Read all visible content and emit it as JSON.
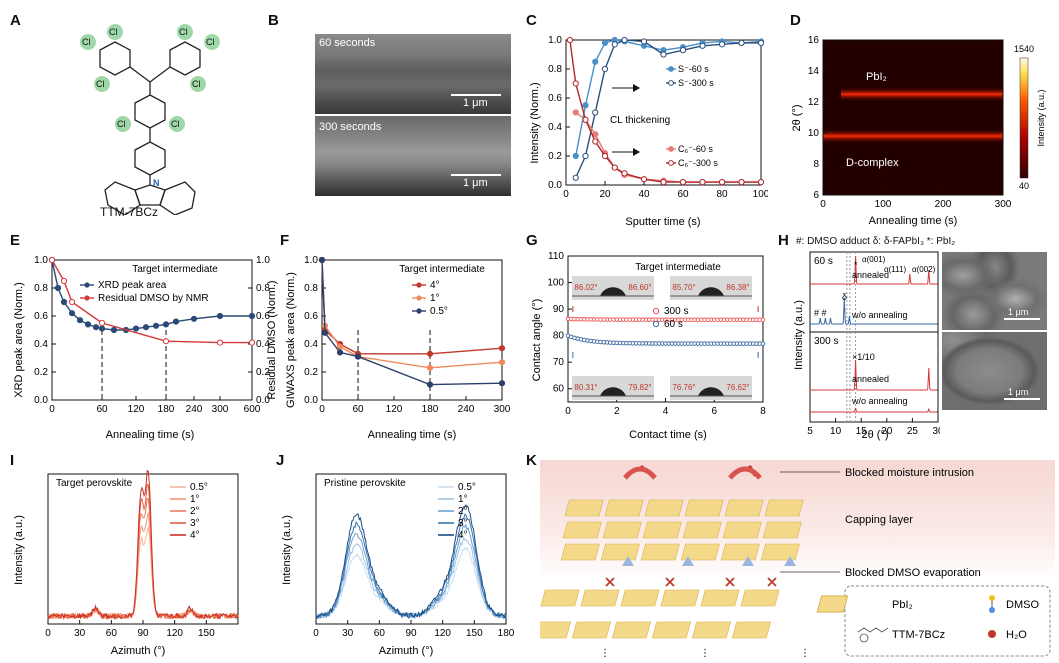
{
  "panels": {
    "A": {
      "label": "A",
      "molecule_name": "TTM-7BCz",
      "atoms": {
        "cl": "Cl",
        "n": "N"
      }
    },
    "B": {
      "label": "B",
      "top": "60 seconds",
      "bottom": "300 seconds",
      "scale": "1 μm"
    },
    "C": {
      "label": "C",
      "xlabel": "Sputter time (s)",
      "ylabel": "Intensity (Norm.)",
      "annotation": "CL thickening",
      "legend": [
        "S⁻-60 s",
        "S⁻-300 s",
        "C₆⁻-60 s",
        "C₆⁻-300 s"
      ]
    },
    "D": {
      "label": "D",
      "xlabel": "Annealing time (s)",
      "ylabel": "2θ (°)",
      "band_top": "PbI₂",
      "band_bottom": "D-complex",
      "cbar_max": "1540",
      "cbar_min": "40",
      "cbar_label": "Intensity (a.u.)"
    },
    "E": {
      "label": "E",
      "xlabel": "Annealing time (s)",
      "ylabel_left": "XRD peak area (Norm.)",
      "ylabel_right": "Residual DMSO (Norm.)",
      "title": "Target intermediate",
      "legend": [
        "XRD peak area",
        "Residual DMSO by NMR"
      ]
    },
    "F": {
      "label": "F",
      "xlabel": "Annealing time (s)",
      "ylabel": "GIWAXS peak area (Norm.)",
      "title": "Target intermediate",
      "legend": [
        "4°",
        "1°",
        "0.5°"
      ]
    },
    "G": {
      "label": "G",
      "xlabel": "Contact time (s)",
      "ylabel": "Contact angle (°)",
      "title": "Target intermediate",
      "legend": [
        "300 s",
        "60 s"
      ],
      "angles": [
        "86.02°",
        "86.60°",
        "85.70°",
        "86.38°",
        "80.31°",
        "79.82°",
        "76.76°",
        "76.62°"
      ]
    },
    "H": {
      "label": "H",
      "header": "#: DMSO adduct  δ: δ-FAPbI₃ *: PbI₂",
      "xlabel": "2θ (°)",
      "ylabel": "Intensity (a.u.)",
      "t60": "60 s",
      "t300": "300 s",
      "annealed": "annealed",
      "wo": "w/o annealing",
      "x10": "×1/10",
      "alpha001": "α(001)",
      "alpha111": "α(111)",
      "alpha002": "α(002)",
      "hash": "#",
      "hashes": "# #",
      "delta": "δ",
      "star": "*",
      "scale": "1 μm"
    },
    "I": {
      "label": "I",
      "xlabel": "Azimuth (°)",
      "ylabel": "Intensity (a.u.)",
      "title": "Target perovskite",
      "legend": [
        "0.5°",
        "1°",
        "2°",
        "3°",
        "4°"
      ]
    },
    "J": {
      "label": "J",
      "xlabel": "Azimuth (°)",
      "ylabel": "Intensity (a.u.)",
      "title": "Pristine perovskite",
      "legend": [
        "0.5°",
        "1°",
        "2°",
        "3°",
        "4°"
      ]
    },
    "K": {
      "label": "K",
      "callouts": [
        "Blocked moisture intrusion",
        "Capping layer",
        "Blocked DMSO evaporation"
      ],
      "key": [
        "PbI₂",
        "TTM-7BCz",
        "DMSO",
        "H₂O"
      ]
    }
  },
  "chart_data": [
    {
      "panel": "C",
      "type": "line",
      "xlim": [
        0,
        100
      ],
      "ylim": [
        0,
        1.0
      ],
      "series": [
        {
          "name": "S⁻-60 s",
          "color": "#4a90c8",
          "x": [
            5,
            10,
            15,
            20,
            25,
            30,
            40,
            50,
            60,
            70,
            80,
            90,
            100
          ],
          "y": [
            0.2,
            0.55,
            0.85,
            0.98,
            1.0,
            0.99,
            0.96,
            0.93,
            0.95,
            0.98,
            0.99,
            0.98,
            0.99
          ]
        },
        {
          "name": "S⁻-300 s",
          "color": "#2a4f7a",
          "x": [
            5,
            10,
            15,
            20,
            25,
            30,
            40,
            50,
            60,
            70,
            80,
            90,
            100
          ],
          "y": [
            0.05,
            0.2,
            0.5,
            0.8,
            0.97,
            1.0,
            0.99,
            0.9,
            0.93,
            0.96,
            0.97,
            0.98,
            0.98
          ]
        },
        {
          "name": "C₆⁻-60 s",
          "color": "#e77a7a",
          "x": [
            5,
            10,
            15,
            20,
            25,
            30,
            40,
            50,
            60,
            70,
            80,
            90,
            100
          ],
          "y": [
            0.5,
            0.45,
            0.35,
            0.22,
            0.12,
            0.07,
            0.04,
            0.03,
            0.02,
            0.02,
            0.02,
            0.02,
            0.02
          ]
        },
        {
          "name": "C₆⁻-300 s",
          "color": "#b32626",
          "x": [
            2,
            5,
            10,
            15,
            20,
            25,
            30,
            40,
            50,
            60,
            70,
            80,
            90,
            100
          ],
          "y": [
            1.0,
            0.7,
            0.45,
            0.3,
            0.2,
            0.12,
            0.08,
            0.04,
            0.02,
            0.02,
            0.02,
            0.02,
            0.02,
            0.02
          ]
        }
      ]
    },
    {
      "panel": "D",
      "type": "heatmap",
      "xlim": [
        0,
        300
      ],
      "ylim": [
        6,
        16
      ],
      "bands": [
        {
          "center": 9.8,
          "start": 0
        },
        {
          "center": 12.5,
          "start": 30
        }
      ],
      "xticks": [
        0,
        100,
        200,
        300
      ],
      "yticks": [
        6,
        8,
        10,
        12,
        14,
        16
      ]
    },
    {
      "panel": "E",
      "type": "line",
      "xticks": [
        "0",
        "60",
        "120",
        "180",
        "240",
        "300",
        "600"
      ],
      "series": [
        {
          "name": "XRD peak area",
          "color": "#2b4a78",
          "x": [
            0,
            5,
            10,
            20,
            30,
            40,
            50,
            60,
            80,
            100,
            120,
            140,
            160,
            180,
            200,
            240,
            300,
            600
          ],
          "y": [
            1.0,
            0.8,
            0.7,
            0.62,
            0.57,
            0.54,
            0.52,
            0.51,
            0.5,
            0.5,
            0.51,
            0.52,
            0.53,
            0.54,
            0.56,
            0.58,
            0.6,
            0.6
          ]
        },
        {
          "name": "Residual DMSO by NMR",
          "color": "#d43a3a",
          "x": [
            0,
            10,
            20,
            60,
            180,
            300,
            600
          ],
          "y": [
            1.0,
            0.85,
            0.7,
            0.55,
            0.42,
            0.41,
            0.41
          ]
        }
      ]
    },
    {
      "panel": "F",
      "type": "line",
      "xlim": [
        0,
        300
      ],
      "ylim": [
        0,
        1.0
      ],
      "series": [
        {
          "name": "4°",
          "color": "#c0392b",
          "x": [
            0,
            5,
            30,
            60,
            180,
            300
          ],
          "y": [
            1.0,
            0.5,
            0.4,
            0.33,
            0.33,
            0.37
          ]
        },
        {
          "name": "1°",
          "color": "#f08a5d",
          "x": [
            0,
            5,
            30,
            60,
            180,
            300
          ],
          "y": [
            1.0,
            0.53,
            0.38,
            0.31,
            0.23,
            0.27
          ]
        },
        {
          "name": "0.5°",
          "color": "#2c3e6b",
          "x": [
            0,
            5,
            30,
            60,
            180,
            300
          ],
          "y": [
            1.0,
            0.48,
            0.34,
            0.31,
            0.11,
            0.12
          ]
        }
      ]
    },
    {
      "panel": "G",
      "type": "scatter",
      "xlim": [
        0,
        8
      ],
      "ylim": [
        55,
        110
      ],
      "series": [
        {
          "name": "300 s",
          "color": "#e55",
          "y_level": 86
        },
        {
          "name": "60 s",
          "color": "#3a6aa0",
          "y_level": 77
        }
      ]
    },
    {
      "panel": "I",
      "type": "line",
      "xlim": [
        0,
        180
      ],
      "xticks": [
        0,
        30,
        60,
        90,
        120,
        150
      ]
    },
    {
      "panel": "J",
      "type": "line",
      "xlim": [
        0,
        180
      ],
      "xticks": [
        0,
        30,
        60,
        90,
        120,
        150,
        180
      ]
    }
  ]
}
